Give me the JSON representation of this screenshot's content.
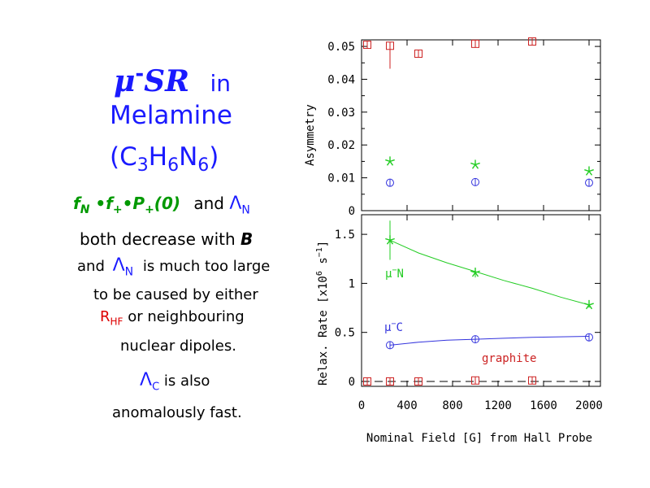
{
  "slide": {
    "title": {
      "mu": "μ",
      "minus": "-",
      "sr": "SR",
      "in": "in",
      "line2": "Melamine",
      "formula_parts": [
        "(C",
        "3",
        "H",
        "6",
        "N",
        "6",
        ")"
      ]
    },
    "body": {
      "l1_f": "f",
      "l1_n": "N",
      "l1_dot1": "•f",
      "l1_plus1": "+",
      "l1_dot2": "•P",
      "l1_plus2": "+",
      "l1_zero": "(0)",
      "l1_and": "and",
      "l1_lambda": "Λ",
      "l1_lambda_sub": "N",
      "l2_text": "both decrease with",
      "l2_b": "B",
      "l3_and": "and",
      "l3_lambda": "Λ",
      "l3_sub": "N",
      "l3_text": "is much too large",
      "l4": "to be caused by either",
      "l5_r": "R",
      "l5_sub": "HF",
      "l5_text": "or neighbouring",
      "l6": "nuclear dipoles.",
      "l7_lambda": "Λ",
      "l7_sub": "C",
      "l7_text": "is also",
      "l8": "anomalously fast."
    },
    "colors": {
      "blue": "#1a1aff",
      "green": "#009900",
      "red": "#dd0000",
      "plot_red": "#cc2222",
      "plot_green": "#22cc22",
      "plot_blue": "#3333dd"
    }
  },
  "chart_data": [
    {
      "type": "scatter",
      "ylabel": "Asymmetry",
      "xlim": [
        0,
        2100
      ],
      "ylim": [
        0,
        0.052
      ],
      "yticks": [
        "0",
        "0.01",
        "0.02",
        "0.03",
        "0.04",
        "0.05"
      ],
      "ytick_values": [
        0,
        0.01,
        0.02,
        0.03,
        0.04,
        0.05
      ],
      "series": [
        {
          "marker": "square",
          "color": "#cc2222",
          "points": [
            [
              50,
              0.0505
            ],
            [
              250,
              0.0502
            ],
            [
              500,
              0.0478
            ],
            [
              1000,
              0.0508
            ],
            [
              1500,
              0.0515
            ]
          ],
          "err": [
            0,
            0.007,
            0,
            0,
            0
          ]
        },
        {
          "marker": "star",
          "color": "#22cc22",
          "points": [
            [
              250,
              0.015
            ],
            [
              1000,
              0.014
            ],
            [
              2000,
              0.012
            ]
          ]
        },
        {
          "marker": "circle",
          "color": "#3333dd",
          "points": [
            [
              250,
              0.0085
            ],
            [
              1000,
              0.0087
            ],
            [
              2000,
              0.0085
            ]
          ]
        }
      ]
    },
    {
      "type": "line",
      "ylabel": "Relax. Rate [x10^6 s^-1]",
      "ylabel_parts": {
        "main": "Relax. Rate [x10",
        "exp1": "6",
        "mid": " s",
        "exp2": "−1",
        "end": "]"
      },
      "xlabel": "Nominal Field [G] from Hall Probe",
      "xlim": [
        0,
        2100
      ],
      "ylim": [
        -0.05,
        1.7
      ],
      "xticks": [
        "0",
        "400",
        "800",
        "1200",
        "1600",
        "2000"
      ],
      "xtick_values": [
        0,
        400,
        800,
        1200,
        1600,
        2000
      ],
      "yticks": [
        "0",
        "0.5",
        "1",
        "1.5"
      ],
      "ytick_values": [
        0,
        0.5,
        1,
        1.5
      ],
      "series": [
        {
          "name": "μ⁻N",
          "marker": "star",
          "color": "#22cc22",
          "points": [
            [
              250,
              1.44
            ],
            [
              1000,
              1.11
            ],
            [
              2000,
              0.78
            ]
          ],
          "err": [
            0.2,
            0.05,
            0.03
          ],
          "fit": [
            [
              250,
              1.44
            ],
            [
              500,
              1.31
            ],
            [
              750,
              1.21
            ],
            [
              1000,
              1.12
            ],
            [
              1250,
              1.03
            ],
            [
              1500,
              0.95
            ],
            [
              1750,
              0.86
            ],
            [
              2000,
              0.78
            ]
          ]
        },
        {
          "name": "μ⁻C",
          "marker": "circle",
          "color": "#3333dd",
          "points": [
            [
              250,
              0.37
            ],
            [
              1000,
              0.43
            ],
            [
              2000,
              0.45
            ]
          ],
          "fit": [
            [
              250,
              0.37
            ],
            [
              500,
              0.4
            ],
            [
              750,
              0.42
            ],
            [
              1000,
              0.43
            ],
            [
              1250,
              0.44
            ],
            [
              1500,
              0.45
            ],
            [
              1750,
              0.455
            ],
            [
              2000,
              0.46
            ]
          ]
        },
        {
          "name": "graphite",
          "marker": "square",
          "color": "#cc2222",
          "points": [
            [
              50,
              0.0
            ],
            [
              250,
              0.0
            ],
            [
              500,
              0.0
            ],
            [
              1000,
              0.01
            ],
            [
              1500,
              0.01
            ]
          ],
          "dashed_baseline": 0
        }
      ],
      "annotations": [
        {
          "text_main": "μ",
          "text_sup": "−",
          "text_end": "N",
          "color": "#22cc22"
        },
        {
          "text_main": "μ",
          "text_sup": "−",
          "text_end": "C",
          "color": "#3333dd"
        },
        {
          "text": "graphite",
          "color": "#cc2222"
        }
      ]
    }
  ]
}
